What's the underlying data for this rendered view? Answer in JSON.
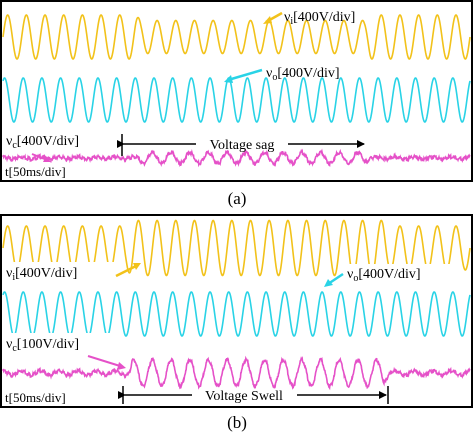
{
  "chart_data": [
    {
      "type": "line",
      "caption": "(a)",
      "x_unit_label": "t[50ms/div]",
      "event_label": "Voltage sag",
      "cycles_visible": 25,
      "event_span_fraction": [
        0.29,
        0.78
      ],
      "series": [
        {
          "name": "vi[400V/div]",
          "symbol": "ν",
          "sub": "i",
          "scale": "[400V/div]",
          "color": "#f2c21a",
          "amplitude_div": [
            1.0,
            0.75,
            1.0
          ]
        },
        {
          "name": "vo[400V/div]",
          "symbol": "ν",
          "sub": "o",
          "scale": "[400V/div]",
          "color": "#29d3e6",
          "amplitude_div": [
            1.0,
            1.0,
            1.0
          ]
        },
        {
          "name": "vc[400V/div]",
          "symbol": "ν",
          "sub": "c",
          "scale": "[400V/div]",
          "color": "#e551c8",
          "amplitude_div": [
            0.05,
            0.25,
            0.05
          ]
        }
      ]
    },
    {
      "type": "line",
      "caption": "(b)",
      "x_unit_label": "t[50ms/div]",
      "event_label": "Voltage Swell",
      "cycles_visible": 25,
      "event_span_fraction": [
        0.27,
        0.82
      ],
      "series": [
        {
          "name": "vi[400V/div]",
          "symbol": "ν",
          "sub": "i",
          "scale": "[400V/div]",
          "color": "#f2c21a",
          "amplitude_div": [
            1.0,
            1.25,
            1.0
          ]
        },
        {
          "name": "vo[400V/div]",
          "symbol": "ν",
          "sub": "o",
          "scale": "[400V/div]",
          "color": "#29d3e6",
          "amplitude_div": [
            1.0,
            1.0,
            1.0
          ]
        },
        {
          "name": "vc[100V/div]",
          "symbol": "ν",
          "sub": "c",
          "scale": "[100V/div]",
          "color": "#e551c8",
          "amplitude_div": [
            0.1,
            0.6,
            0.1
          ]
        }
      ]
    }
  ]
}
